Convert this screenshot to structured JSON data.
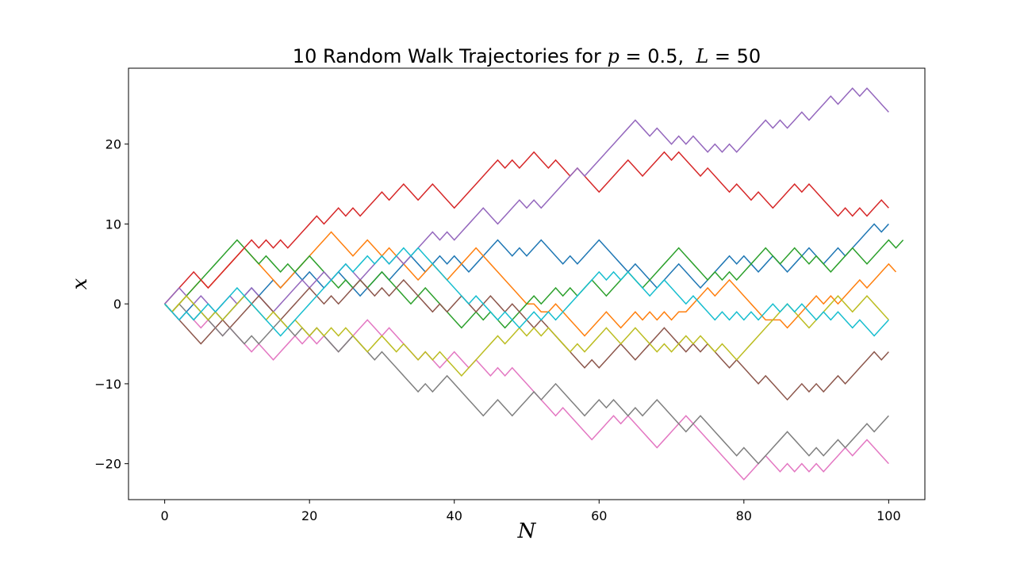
{
  "chart_data": {
    "type": "line",
    "title": {
      "prefix": "10 Random Walk Trajectories for ",
      "p_symbol": "p",
      "p_part": " = 0.5,  ",
      "l_symbol": "L",
      "l_part": " = 50"
    },
    "xlabel": "N",
    "ylabel": "x",
    "xlim": [
      -5,
      105
    ],
    "ylim": [
      -24.5,
      29.5
    ],
    "xticks": [
      0,
      20,
      40,
      60,
      80,
      100
    ],
    "yticks": [
      -20,
      -10,
      0,
      10,
      20
    ],
    "ytick_labels": [
      "−20",
      "−10",
      "0",
      "10",
      "20"
    ],
    "grid": false,
    "x_start": 0,
    "x_step": 1,
    "series_colors": [
      "#1f77b4",
      "#ff7f0e",
      "#2ca02c",
      "#d62728",
      "#9467bd",
      "#8c564b",
      "#e377c2",
      "#7f7f7f",
      "#bcbd22",
      "#17becf"
    ],
    "series": [
      {
        "values": [
          0,
          -1,
          -2,
          -1,
          0,
          -1,
          -2,
          -1,
          -2,
          -1,
          0,
          1,
          2,
          1,
          2,
          3,
          2,
          3,
          4,
          3,
          4,
          3,
          2,
          3,
          4,
          3,
          2,
          1,
          2,
          3,
          4,
          3,
          4,
          5,
          6,
          5,
          4,
          5,
          6,
          5,
          6,
          5,
          4,
          5,
          6,
          7,
          8,
          7,
          6,
          7,
          6,
          7,
          8,
          7,
          6,
          5,
          6,
          5,
          6,
          7,
          8,
          7,
          6,
          5,
          4,
          5,
          4,
          3,
          2,
          3,
          4,
          5,
          4,
          3,
          2,
          3,
          4,
          5,
          6,
          5,
          6,
          5,
          4,
          5,
          6,
          5,
          4,
          5,
          6,
          7,
          6,
          5,
          6,
          7,
          6,
          7,
          8,
          9,
          10,
          9,
          10
        ]
      },
      {
        "values": [
          0,
          -1,
          0,
          1,
          2,
          3,
          2,
          3,
          4,
          5,
          6,
          7,
          6,
          5,
          4,
          3,
          2,
          3,
          4,
          5,
          6,
          7,
          8,
          9,
          8,
          7,
          6,
          7,
          8,
          7,
          6,
          7,
          6,
          5,
          4,
          3,
          4,
          5,
          4,
          3,
          4,
          5,
          6,
          7,
          6,
          5,
          4,
          3,
          2,
          1,
          0,
          0,
          -1,
          -1,
          0,
          -1,
          -2,
          -3,
          -4,
          -3,
          -2,
          -1,
          -2,
          -3,
          -2,
          -1,
          -2,
          -1,
          -2,
          -1,
          -2,
          -1,
          -1,
          0,
          1,
          2,
          1,
          2,
          3,
          2,
          1,
          0,
          -1,
          -2,
          -2,
          -2,
          -3,
          -2,
          -1,
          0,
          1,
          0,
          1,
          0,
          1,
          2,
          3,
          2,
          3,
          4,
          5,
          4
        ]
      },
      {
        "values": [
          0,
          -1,
          0,
          1,
          2,
          3,
          4,
          5,
          6,
          7,
          8,
          7,
          6,
          5,
          6,
          5,
          4,
          5,
          4,
          5,
          6,
          5,
          4,
          3,
          2,
          3,
          2,
          3,
          2,
          3,
          4,
          3,
          2,
          1,
          0,
          1,
          2,
          1,
          0,
          -1,
          -2,
          -3,
          -2,
          -1,
          -2,
          -1,
          -2,
          -3,
          -2,
          -1,
          0,
          1,
          0,
          1,
          2,
          1,
          2,
          1,
          2,
          3,
          2,
          1,
          2,
          3,
          4,
          3,
          2,
          3,
          4,
          5,
          6,
          7,
          6,
          5,
          4,
          3,
          4,
          3,
          4,
          3,
          4,
          5,
          6,
          7,
          6,
          5,
          6,
          7,
          6,
          5,
          6,
          5,
          4,
          5,
          6,
          7,
          6,
          5,
          6,
          7,
          8,
          7,
          8
        ]
      },
      {
        "values": [
          0,
          1,
          2,
          3,
          4,
          3,
          2,
          3,
          4,
          5,
          6,
          7,
          8,
          7,
          8,
          7,
          8,
          7,
          8,
          9,
          10,
          11,
          10,
          11,
          12,
          11,
          12,
          11,
          12,
          13,
          14,
          13,
          14,
          15,
          14,
          13,
          14,
          15,
          14,
          13,
          12,
          13,
          14,
          15,
          16,
          17,
          18,
          17,
          18,
          17,
          18,
          19,
          18,
          17,
          18,
          17,
          16,
          17,
          16,
          15,
          14,
          15,
          16,
          17,
          18,
          17,
          16,
          17,
          18,
          19,
          18,
          19,
          18,
          17,
          16,
          17,
          16,
          15,
          14,
          15,
          14,
          13,
          14,
          13,
          12,
          13,
          14,
          15,
          14,
          15,
          14,
          13,
          12,
          11,
          12,
          11,
          12,
          11,
          12,
          13,
          12
        ]
      },
      {
        "values": [
          0,
          1,
          2,
          1,
          0,
          1,
          0,
          -1,
          0,
          1,
          0,
          1,
          2,
          1,
          0,
          -1,
          0,
          1,
          2,
          3,
          2,
          3,
          4,
          3,
          4,
          5,
          4,
          3,
          4,
          5,
          6,
          5,
          6,
          5,
          6,
          7,
          8,
          9,
          8,
          9,
          8,
          9,
          10,
          11,
          12,
          11,
          10,
          11,
          12,
          13,
          12,
          13,
          12,
          13,
          14,
          15,
          16,
          17,
          16,
          17,
          18,
          19,
          20,
          21,
          22,
          23,
          22,
          21,
          22,
          21,
          20,
          21,
          20,
          21,
          20,
          19,
          20,
          19,
          20,
          19,
          20,
          21,
          22,
          23,
          22,
          23,
          22,
          23,
          24,
          23,
          24,
          25,
          26,
          25,
          26,
          27,
          26,
          27,
          26,
          25,
          24
        ]
      },
      {
        "values": [
          0,
          -1,
          -2,
          -3,
          -4,
          -5,
          -4,
          -3,
          -2,
          -3,
          -2,
          -1,
          0,
          1,
          0,
          -1,
          -2,
          -1,
          0,
          1,
          2,
          1,
          0,
          1,
          0,
          1,
          2,
          3,
          2,
          1,
          2,
          1,
          2,
          3,
          2,
          1,
          0,
          -1,
          0,
          -1,
          0,
          1,
          0,
          -1,
          0,
          1,
          0,
          -1,
          0,
          -1,
          -2,
          -3,
          -2,
          -3,
          -4,
          -5,
          -6,
          -7,
          -8,
          -7,
          -8,
          -7,
          -6,
          -5,
          -6,
          -7,
          -6,
          -5,
          -4,
          -3,
          -4,
          -5,
          -6,
          -5,
          -6,
          -5,
          -6,
          -7,
          -8,
          -7,
          -8,
          -9,
          -10,
          -9,
          -10,
          -11,
          -12,
          -11,
          -10,
          -11,
          -10,
          -11,
          -10,
          -9,
          -10,
          -9,
          -8,
          -7,
          -6,
          -7,
          -6
        ]
      },
      {
        "values": [
          0,
          -1,
          -2,
          -1,
          -2,
          -3,
          -2,
          -3,
          -4,
          -3,
          -4,
          -5,
          -6,
          -5,
          -6,
          -7,
          -6,
          -5,
          -4,
          -5,
          -4,
          -5,
          -4,
          -5,
          -6,
          -5,
          -4,
          -3,
          -2,
          -3,
          -4,
          -3,
          -4,
          -5,
          -6,
          -7,
          -6,
          -7,
          -8,
          -7,
          -6,
          -7,
          -8,
          -7,
          -8,
          -9,
          -8,
          -9,
          -8,
          -9,
          -10,
          -11,
          -12,
          -13,
          -14,
          -13,
          -14,
          -15,
          -16,
          -17,
          -16,
          -15,
          -14,
          -15,
          -14,
          -15,
          -16,
          -17,
          -18,
          -17,
          -16,
          -15,
          -14,
          -15,
          -16,
          -17,
          -18,
          -19,
          -20,
          -21,
          -22,
          -21,
          -20,
          -19,
          -20,
          -21,
          -20,
          -21,
          -20,
          -21,
          -20,
          -21,
          -20,
          -19,
          -18,
          -19,
          -18,
          -17,
          -18,
          -19,
          -20
        ]
      },
      {
        "values": [
          0,
          -1,
          0,
          -1,
          -2,
          -1,
          -2,
          -3,
          -4,
          -3,
          -4,
          -5,
          -4,
          -5,
          -4,
          -3,
          -2,
          -3,
          -4,
          -3,
          -4,
          -3,
          -4,
          -5,
          -6,
          -5,
          -4,
          -5,
          -6,
          -7,
          -6,
          -7,
          -8,
          -9,
          -10,
          -11,
          -10,
          -11,
          -10,
          -9,
          -10,
          -11,
          -12,
          -13,
          -14,
          -13,
          -12,
          -13,
          -14,
          -13,
          -12,
          -11,
          -12,
          -11,
          -10,
          -11,
          -12,
          -13,
          -14,
          -13,
          -12,
          -13,
          -12,
          -13,
          -14,
          -13,
          -14,
          -13,
          -12,
          -13,
          -14,
          -15,
          -16,
          -15,
          -14,
          -15,
          -16,
          -17,
          -18,
          -19,
          -18,
          -19,
          -20,
          -19,
          -18,
          -17,
          -16,
          -17,
          -18,
          -19,
          -18,
          -19,
          -18,
          -17,
          -18,
          -17,
          -16,
          -15,
          -16,
          -15,
          -14
        ]
      },
      {
        "values": [
          0,
          -1,
          0,
          1,
          0,
          -1,
          -2,
          -1,
          -2,
          -1,
          0,
          1,
          0,
          -1,
          -2,
          -1,
          -2,
          -3,
          -2,
          -3,
          -4,
          -3,
          -4,
          -3,
          -4,
          -3,
          -4,
          -5,
          -6,
          -5,
          -4,
          -5,
          -6,
          -5,
          -6,
          -7,
          -6,
          -7,
          -6,
          -7,
          -8,
          -9,
          -8,
          -7,
          -6,
          -5,
          -4,
          -5,
          -4,
          -3,
          -4,
          -3,
          -4,
          -3,
          -4,
          -5,
          -6,
          -5,
          -6,
          -5,
          -4,
          -3,
          -4,
          -5,
          -4,
          -3,
          -4,
          -5,
          -6,
          -5,
          -6,
          -5,
          -4,
          -5,
          -4,
          -5,
          -6,
          -5,
          -6,
          -7,
          -6,
          -5,
          -4,
          -3,
          -2,
          -1,
          0,
          -1,
          -2,
          -3,
          -2,
          -1,
          0,
          1,
          0,
          -1,
          0,
          1,
          0,
          -1,
          -2
        ]
      },
      {
        "values": [
          0,
          -1,
          -2,
          -1,
          -2,
          -1,
          0,
          -1,
          0,
          1,
          2,
          1,
          0,
          -1,
          -2,
          -3,
          -4,
          -3,
          -2,
          -1,
          0,
          1,
          2,
          3,
          4,
          5,
          4,
          5,
          6,
          5,
          6,
          5,
          6,
          7,
          6,
          7,
          6,
          5,
          4,
          3,
          2,
          1,
          0,
          1,
          0,
          -1,
          -2,
          -1,
          -2,
          -3,
          -2,
          -1,
          -2,
          -1,
          -2,
          -1,
          0,
          1,
          2,
          3,
          4,
          3,
          4,
          3,
          4,
          3,
          2,
          1,
          2,
          3,
          2,
          1,
          0,
          1,
          0,
          -1,
          -2,
          -1,
          -2,
          -1,
          -2,
          -1,
          -2,
          -1,
          0,
          -1,
          0,
          -1,
          0,
          -1,
          -2,
          -1,
          -2,
          -1,
          -2,
          -3,
          -2,
          -3,
          -4,
          -3,
          -2
        ]
      }
    ]
  }
}
